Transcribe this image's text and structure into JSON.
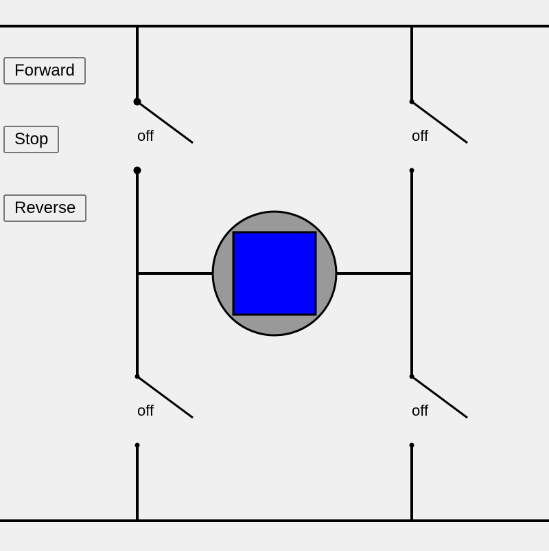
{
  "controls": {
    "forward_label": "Forward",
    "stop_label": "Stop",
    "reverse_label": "Reverse"
  },
  "switches": {
    "top_left": {
      "state": "off"
    },
    "top_right": {
      "state": "off"
    },
    "bottom_left": {
      "state": "off"
    },
    "bottom_right": {
      "state": "off"
    }
  },
  "colors": {
    "wire": "#000000",
    "background": "#f0f0f0",
    "motor_housing": "#999999",
    "motor_rotor": "#0000ff"
  }
}
